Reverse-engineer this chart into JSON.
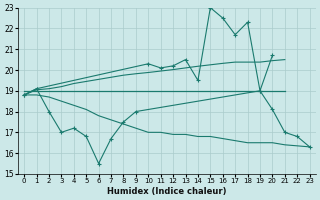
{
  "x": [
    0,
    1,
    2,
    3,
    4,
    5,
    6,
    7,
    8,
    9,
    10,
    11,
    12,
    13,
    14,
    15,
    16,
    17,
    18,
    19,
    20,
    21,
    22,
    23
  ],
  "line_jagged_upper": [
    18.8,
    19.1,
    null,
    null,
    null,
    null,
    null,
    null,
    null,
    null,
    20.3,
    20.1,
    20.2,
    20.5,
    19.5,
    23.0,
    22.5,
    21.7,
    22.3,
    19.0,
    20.7,
    null,
    null,
    null
  ],
  "line_reg_upper": [
    18.8,
    19.05,
    19.1,
    19.2,
    19.35,
    19.45,
    19.55,
    19.65,
    19.75,
    19.82,
    19.88,
    19.95,
    20.02,
    20.1,
    20.18,
    20.25,
    20.32,
    20.38,
    20.38,
    20.38,
    20.45,
    20.5,
    null,
    null
  ],
  "line_flat": [
    19.0,
    19.0,
    19.0,
    19.0,
    19.0,
    19.0,
    19.0,
    19.0,
    19.0,
    19.0,
    19.0,
    19.0,
    19.0,
    19.0,
    19.0,
    19.0,
    19.0,
    19.0,
    19.0,
    19.0,
    19.0,
    19.0,
    null,
    null
  ],
  "line_jagged_lower": [
    18.8,
    19.1,
    18.0,
    17.0,
    17.2,
    16.8,
    15.5,
    16.7,
    17.5,
    18.0,
    null,
    null,
    null,
    null,
    null,
    null,
    null,
    null,
    null,
    19.0,
    18.1,
    17.0,
    16.8,
    16.3
  ],
  "line_reg_lower": [
    18.8,
    18.8,
    18.7,
    18.5,
    18.3,
    18.1,
    17.8,
    17.6,
    17.4,
    17.2,
    17.0,
    17.0,
    16.9,
    16.9,
    16.8,
    16.8,
    16.7,
    16.6,
    16.5,
    16.5,
    16.5,
    16.4,
    16.35,
    16.3
  ],
  "color_lines": "#1a7a6e",
  "bg_color": "#cce8e8",
  "grid_color": "#aacccc",
  "xlim": [
    -0.5,
    23.5
  ],
  "ylim": [
    15,
    23
  ],
  "yticks": [
    15,
    16,
    17,
    18,
    19,
    20,
    21,
    22,
    23
  ],
  "xticks": [
    0,
    1,
    2,
    3,
    4,
    5,
    6,
    7,
    8,
    9,
    10,
    11,
    12,
    13,
    14,
    15,
    16,
    17,
    18,
    19,
    20,
    21,
    22,
    23
  ],
  "xlabel": "Humidex (Indice chaleur)"
}
